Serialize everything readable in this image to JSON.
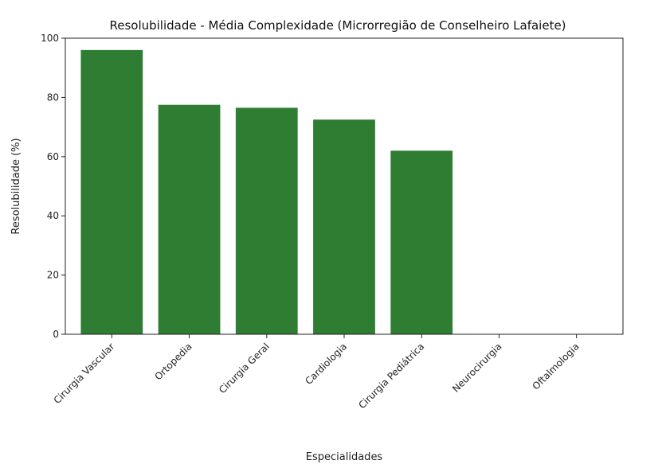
{
  "chart_data": {
    "type": "bar",
    "title": "Resolubilidade - Média Complexidade (Microrregião de Conselheiro Lafaiete)",
    "xlabel": "Especialidades",
    "ylabel": "Resolubilidade (%)",
    "categories": [
      "Cirurgia Vascular",
      "Ortopedia",
      "Cirurgia Geral",
      "Cardiologia",
      "Cirurgia Pediátrica",
      "Neurocirurgia",
      "Oftalmologia"
    ],
    "values": [
      96,
      77.5,
      76.5,
      72.5,
      62,
      0,
      0
    ],
    "ylim": [
      0,
      100
    ],
    "yticks": [
      0,
      20,
      40,
      60,
      80,
      100
    ],
    "bar_color": "#2e7d32",
    "grid": false,
    "xtick_rotation_deg": 45
  }
}
